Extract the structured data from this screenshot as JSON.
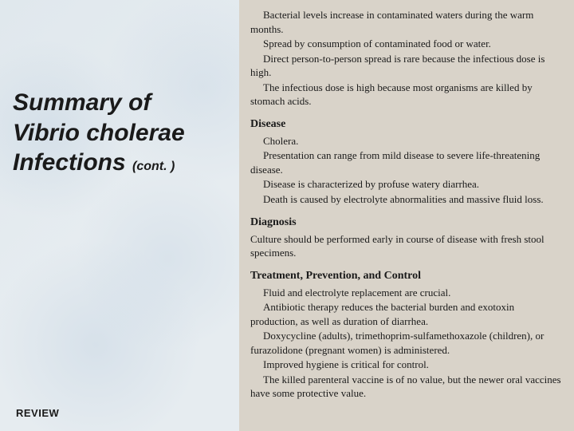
{
  "left": {
    "title_line1": "Summary of",
    "title_line2": "Vibrio cholerae",
    "title_line3": "Infections",
    "title_cont": "(cont. )",
    "review": "REVIEW"
  },
  "right": {
    "intro": [
      "Bacterial levels increase in contaminated waters during the warm months.",
      "Spread by consumption of contaminated food or water.",
      "Direct person-to-person spread is rare because the infectious dose is high.",
      "The infectious dose is high because most organisms are killed by stomach acids."
    ],
    "sections": [
      {
        "heading": "Disease",
        "paras": [
          "Cholera.",
          "Presentation can range from mild disease to severe life-threatening disease.",
          "Disease is characterized by profuse watery diarrhea.",
          "Death is caused by electrolyte abnormalities and massive fluid loss."
        ]
      },
      {
        "heading": "Diagnosis",
        "paras": [
          "Culture should be performed early in course of disease with fresh stool specimens."
        ]
      },
      {
        "heading": "Treatment, Prevention, and Control",
        "paras": [
          "Fluid and electrolyte replacement are crucial.",
          "Antibiotic therapy reduces the bacterial burden and exotoxin production, as well as duration of diarrhea.",
          "Doxycycline (adults), trimethoprim-sulfamethoxazole (children), or furazolidone (pregnant women) is administered.",
          "Improved hygiene is critical for control.",
          "The killed parenteral vaccine is of no value, but the newer oral vaccines have some protective value."
        ]
      }
    ]
  },
  "colors": {
    "left_bg": "#e6ecf0",
    "right_bg": "#d9d3c9",
    "text": "#1a1a1a"
  }
}
